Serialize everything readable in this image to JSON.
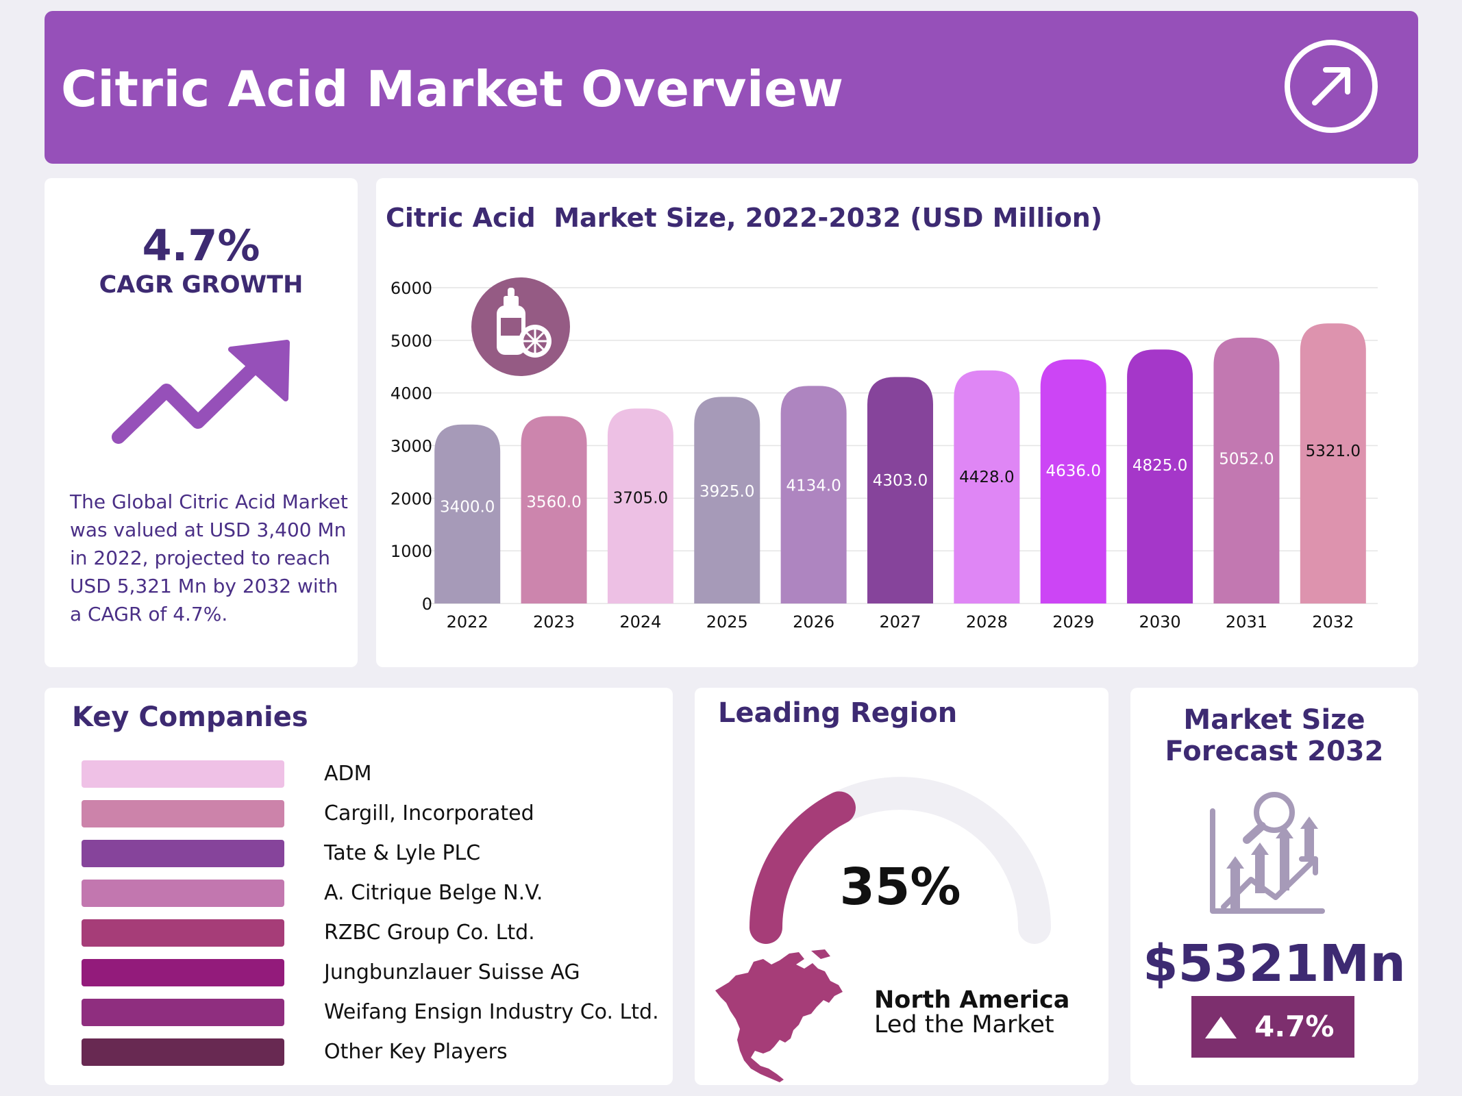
{
  "header": {
    "title": "Citric Acid Market Overview",
    "icon": "arrow-up-right-circle-icon"
  },
  "cagr": {
    "value": "4.7%",
    "label": "CAGR GROWTH",
    "icon": "trend-up-icon",
    "description": "The Global Citric Acid Market was valued at USD 3,400 Mn in 2022, projected to reach USD 5,321 Mn by 2032 with a CAGR of 4.7%."
  },
  "chart_data": {
    "type": "bar",
    "title": "Citric Acid  Market Size, 2022-2032 (USD Million)",
    "categories": [
      "2022",
      "2023",
      "2024",
      "2025",
      "2026",
      "2027",
      "2028",
      "2029",
      "2030",
      "2031",
      "2032"
    ],
    "values": [
      3400.0,
      3560.0,
      3705.0,
      3925.0,
      4134.0,
      4303.0,
      4428.0,
      4636.0,
      4825.0,
      5052.0,
      5321.0
    ],
    "data_labels": [
      "3400.0",
      "3560.0",
      "3705.0",
      "3925.0",
      "4134.0",
      "4303.0",
      "4428.0",
      "4636.0",
      "4825.0",
      "5052.0",
      "5321.0"
    ],
    "bar_colors": [
      "#a69ab8",
      "#cc85ad",
      "#edc0e4",
      "#a69ab8",
      "#ae85c0",
      "#86449b",
      "#df86f5",
      "#cc45f5",
      "#a537c9",
      "#c278b1",
      "#dd93ae"
    ],
    "label_colors": [
      "#ffffff",
      "#ffffff",
      "#111111",
      "#ffffff",
      "#ffffff",
      "#ffffff",
      "#111111",
      "#ffffff",
      "#ffffff",
      "#ffffff",
      "#111111"
    ],
    "yticks": [
      "0",
      "1000",
      "2000",
      "3000",
      "4000",
      "5000",
      "6000"
    ],
    "ylim": [
      0,
      6000
    ],
    "xlabel": "",
    "ylabel": "",
    "grid": true,
    "icon": "citric-acid-bottle-icon"
  },
  "companies": {
    "title": "Key Companies",
    "items": [
      {
        "name": "ADM",
        "color": "#efc1e6"
      },
      {
        "name": "Cargill, Incorporated",
        "color": "#cc83aa"
      },
      {
        "name": "Tate & Lyle PLC",
        "color": "#86449b"
      },
      {
        "name": "A. Citrique Belge N.V.",
        "color": "#c277af"
      },
      {
        "name": "RZBC Group Co. Ltd.",
        "color": "#a63d78"
      },
      {
        "name": "Jungbunzlauer Suisse AG",
        "color": "#931b7b"
      },
      {
        "name": "Weifang Ensign Industry Co. Ltd.",
        "color": "#8f2e7f"
      },
      {
        "name": "Other Key Players",
        "color": "#682952"
      }
    ]
  },
  "region": {
    "title": "Leading Region",
    "share": 35,
    "share_label": "35%",
    "name": "North America",
    "subtitle": "Led the Market",
    "color": "#a63d78",
    "map_icon": "north-america-map-icon"
  },
  "forecast": {
    "title": "Market Size Forecast 2032",
    "value": "$5321Mn",
    "growth": "4.7%",
    "icon": "growth-chart-magnifier-icon"
  }
}
